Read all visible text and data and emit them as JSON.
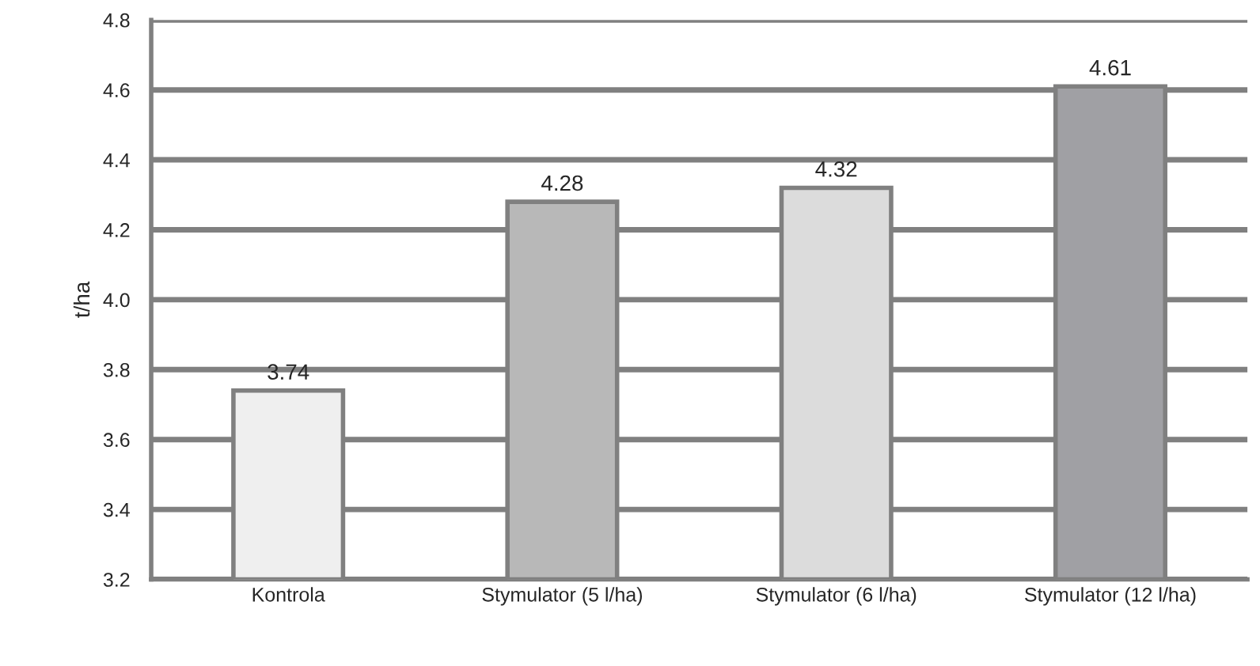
{
  "chart_data": {
    "type": "bar",
    "ylabel": "t/ha",
    "categories": [
      "Kontrola",
      "Stymulator (5 l/ha)",
      "Stymulator (6 l/ha)",
      "Stymulator (12 l/ha)"
    ],
    "values": [
      3.74,
      4.28,
      4.32,
      4.61
    ],
    "colors": [
      "#efefef",
      "#b8b8b8",
      "#dcdcdc",
      "#a0a0a4"
    ],
    "ylim": [
      3.2,
      4.8
    ],
    "yticks": [
      {
        "value": 3.2,
        "label": "3.2"
      },
      {
        "value": 3.4,
        "label": "3.4"
      },
      {
        "value": 3.6,
        "label": "3.6"
      },
      {
        "value": 3.8,
        "label": "3.8"
      },
      {
        "value": 4.0,
        "label": "4.0"
      },
      {
        "value": 4.2,
        "label": "4.2"
      },
      {
        "value": 4.4,
        "label": "4.4"
      },
      {
        "value": 4.6,
        "label": "4.6"
      },
      {
        "value": 4.8,
        "label": "4.8"
      }
    ],
    "grid": "y",
    "data_labels": true,
    "legend": false
  }
}
